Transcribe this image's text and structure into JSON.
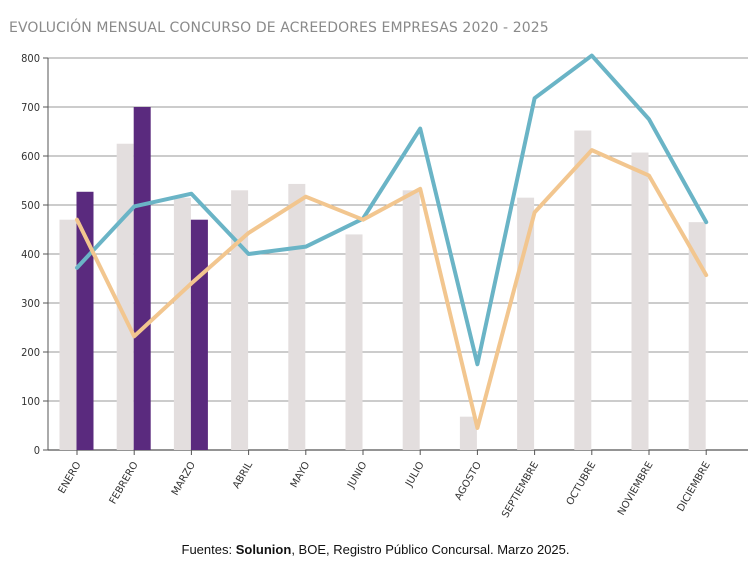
{
  "title": "EVOLUCIÓN MENSUAL CONCURSO DE ACREEDORES EMPRESAS 2020 - 2025",
  "footer": {
    "prefix": "Fuentes: ",
    "brand": "Solunion",
    "suffix": ", BOE, Registro Público Concursal. Marzo 2025."
  },
  "colors": {
    "bar_gray": "#e3dede",
    "bar_purple": "#5a2a7e",
    "line_blue": "#6ab4c6",
    "line_orange": "#f2c68f",
    "grid": "#9a9a9a",
    "axis": "#555555"
  },
  "chart_data": {
    "type": "bar",
    "title": "EVOLUCIÓN MENSUAL CONCURSO DE ACREEDORES EMPRESAS 2020 - 2025",
    "categories": [
      "ENERO",
      "FEBRERO",
      "MARZO",
      "ABRIL",
      "MAYO",
      "JUNIO",
      "JULIO",
      "AGOSTO",
      "SEPTIEMBRE",
      "OCTUBRE",
      "NOVIEMBRE",
      "DICIEMBRE"
    ],
    "ylim": [
      0,
      800
    ],
    "yticks": [
      0,
      100,
      200,
      300,
      400,
      500,
      600,
      700,
      800
    ],
    "grid": true,
    "series": [
      {
        "type": "bar",
        "color": "#e3dede",
        "values": [
          470,
          625,
          515,
          530,
          543,
          440,
          530,
          68,
          515,
          652,
          607,
          465
        ]
      },
      {
        "type": "bar",
        "color": "#5a2a7e",
        "values": [
          527,
          700,
          470,
          null,
          null,
          null,
          null,
          null,
          null,
          null,
          null,
          null
        ]
      },
      {
        "type": "line",
        "color": "#6ab4c6",
        "values": [
          372,
          497,
          523,
          400,
          415,
          472,
          656,
          175,
          718,
          805,
          675,
          465
        ]
      },
      {
        "type": "line",
        "color": "#f2c68f",
        "values": [
          470,
          232,
          340,
          443,
          517,
          470,
          533,
          45,
          485,
          612,
          560,
          357
        ]
      }
    ]
  }
}
